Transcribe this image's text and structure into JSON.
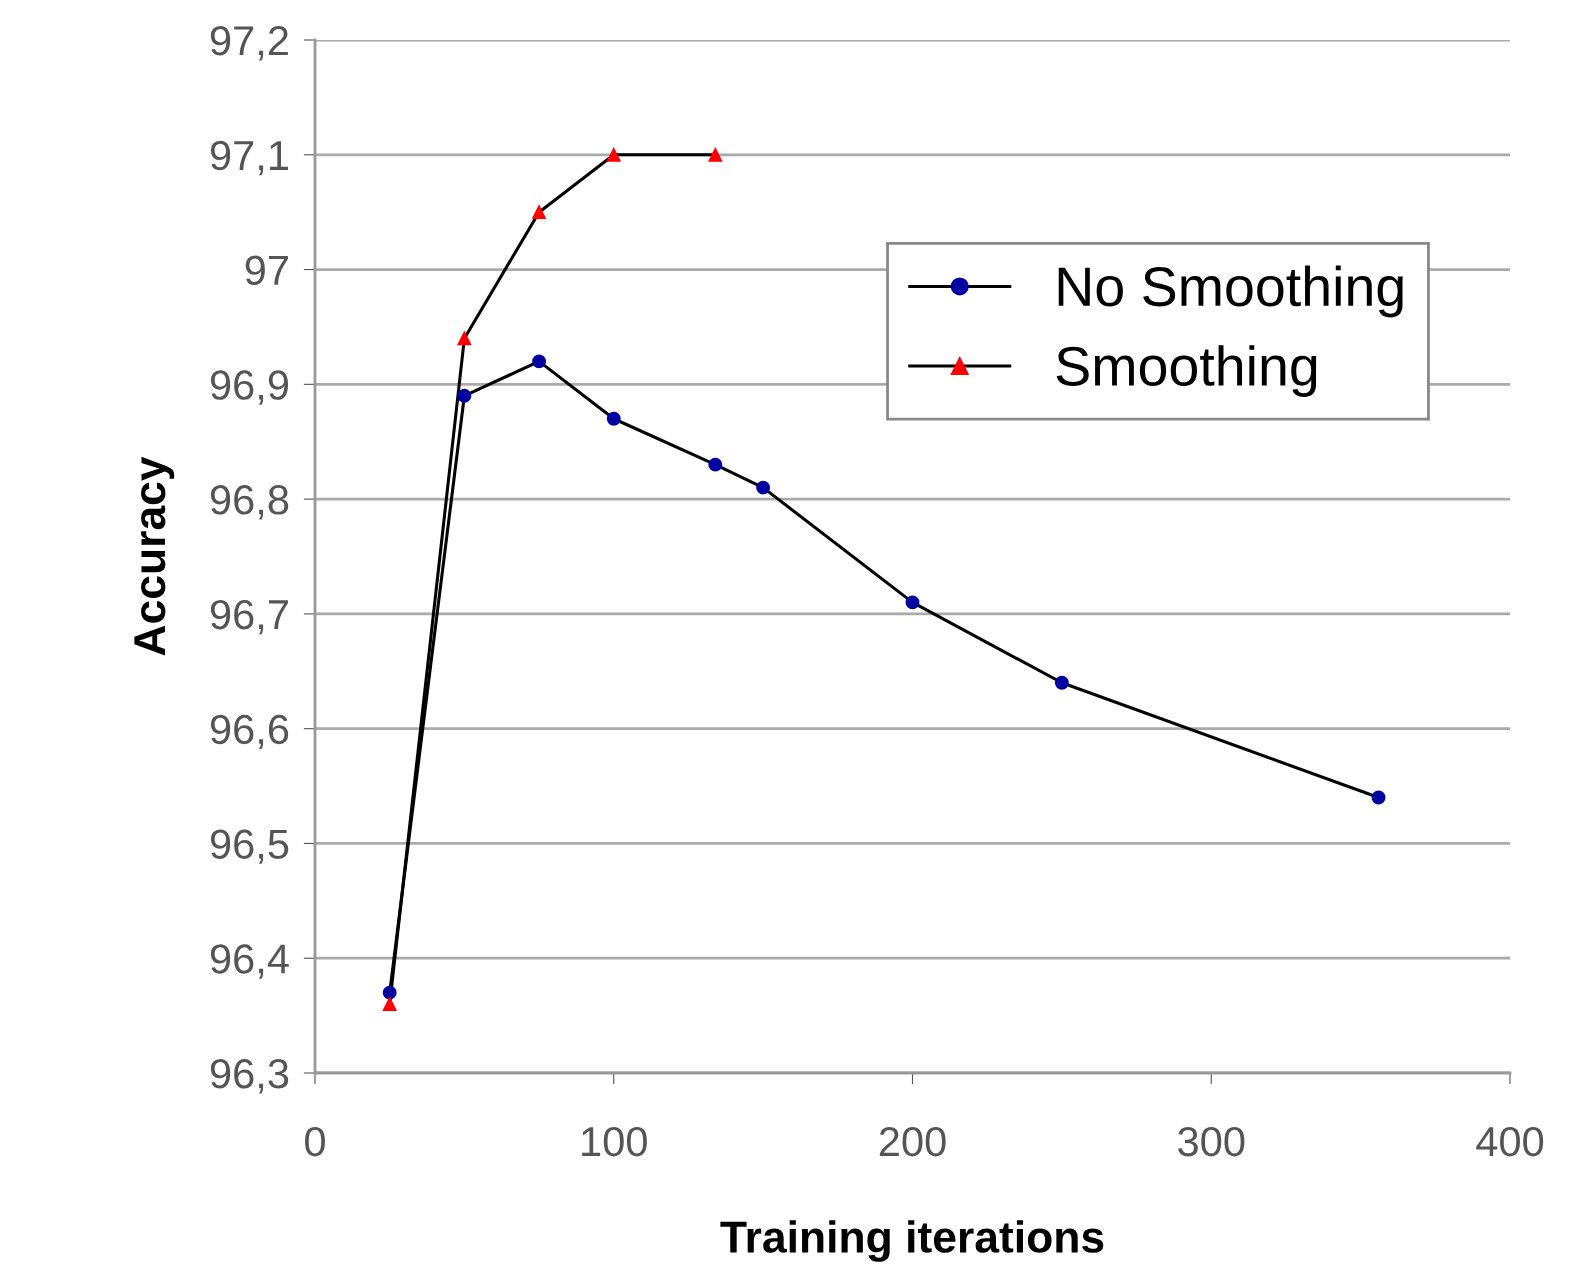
{
  "chart_data": {
    "type": "line",
    "xlabel": "Training iterations",
    "ylabel": "Accuracy",
    "xlim": [
      0,
      400
    ],
    "xticks": [
      0,
      100,
      200,
      300,
      400
    ],
    "ylim": [
      96.3,
      97.2
    ],
    "yticks": [
      {
        "value": 96.3,
        "label": "96,3"
      },
      {
        "value": 96.4,
        "label": "96,4"
      },
      {
        "value": 96.5,
        "label": "96,5"
      },
      {
        "value": 96.6,
        "label": "96,6"
      },
      {
        "value": 96.7,
        "label": "96,7"
      },
      {
        "value": 96.8,
        "label": "96,8"
      },
      {
        "value": 96.9,
        "label": "96,9"
      },
      97,
      {
        "value": 97.1,
        "label": "97,1"
      },
      {
        "value": 97.2,
        "label": "97,2"
      }
    ],
    "grid": "y",
    "legend": "top right",
    "series": [
      {
        "name": "No Smoothing",
        "color": "#0000a0",
        "marker": "circle",
        "x": [
          25,
          50,
          75,
          100,
          134,
          150,
          200,
          250,
          356
        ],
        "values": [
          96.37,
          96.89,
          96.92,
          96.87,
          96.83,
          96.81,
          96.71,
          96.64,
          96.54
        ]
      },
      {
        "name": "Smoothing",
        "color": "#ff0000",
        "marker": "triangle",
        "x": [
          25,
          50,
          75,
          100,
          134
        ],
        "values": [
          96.36,
          96.94,
          97.05,
          97.1,
          97.1
        ]
      }
    ]
  }
}
